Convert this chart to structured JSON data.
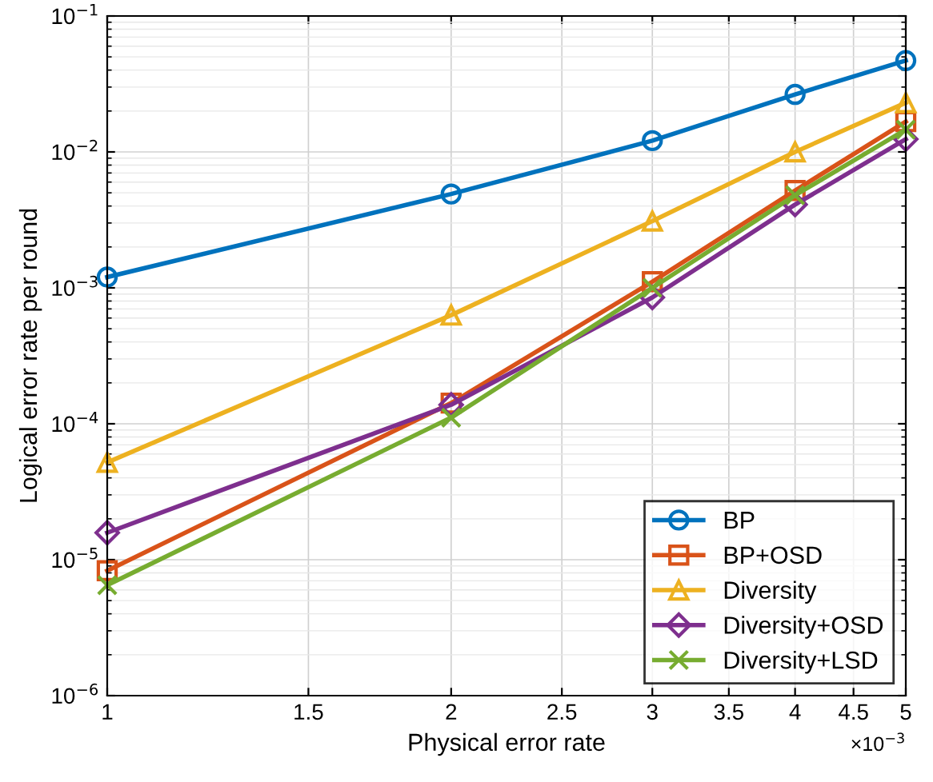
{
  "chart_data": {
    "type": "line",
    "xlabel": "Physical error rate",
    "ylabel": "Logical error rate per round",
    "log": "xy",
    "x": [
      1,
      2,
      3,
      4,
      5
    ],
    "series": [
      {
        "name": "BP",
        "color": "#0072bd",
        "marker": "circle",
        "values": [
          0.0012,
          0.0049,
          0.0121,
          0.0265,
          0.047
        ]
      },
      {
        "name": "BP+OSD",
        "color": "#d95319",
        "marker": "square",
        "values": [
          8.3e-06,
          0.000142,
          0.00111,
          0.0052,
          0.0167
        ]
      },
      {
        "name": "Diversity",
        "color": "#edb120",
        "marker": "triangle",
        "values": [
          5.2e-05,
          0.00063,
          0.0031,
          0.01,
          0.023
        ]
      },
      {
        "name": "Diversity+OSD",
        "color": "#7e2f8e",
        "marker": "diamond",
        "values": [
          1.58e-05,
          0.000138,
          0.00085,
          0.0041,
          0.0124
        ]
      },
      {
        "name": "Diversity+LSD",
        "color": "#77ac30",
        "marker": "cross",
        "values": [
          6.5e-06,
          0.000111,
          0.001,
          0.0048,
          0.0146
        ]
      }
    ],
    "xlim": [
      1,
      5
    ],
    "xticks": [
      1,
      1.5,
      2,
      2.5,
      3,
      3.5,
      4,
      4.5,
      5
    ],
    "ylim": [
      1e-06,
      0.1
    ],
    "yticks": [
      {
        "value": 1e-06,
        "label": "10$^{−6}$"
      },
      {
        "value": 1e-05,
        "label": "10$^{−5}$"
      },
      {
        "value": 0.0001,
        "label": "10$^{−4}$"
      },
      {
        "value": 0.001,
        "label": "10$^{−3}$"
      },
      {
        "value": 0.01,
        "label": "10$^{−2}$"
      },
      {
        "value": 0.1,
        "label": "10$^{−1}$"
      }
    ],
    "annotations": [
      "×10$^{−3}$"
    ],
    "grid": true,
    "legend": "bottom right",
    "line_style": "solid"
  }
}
